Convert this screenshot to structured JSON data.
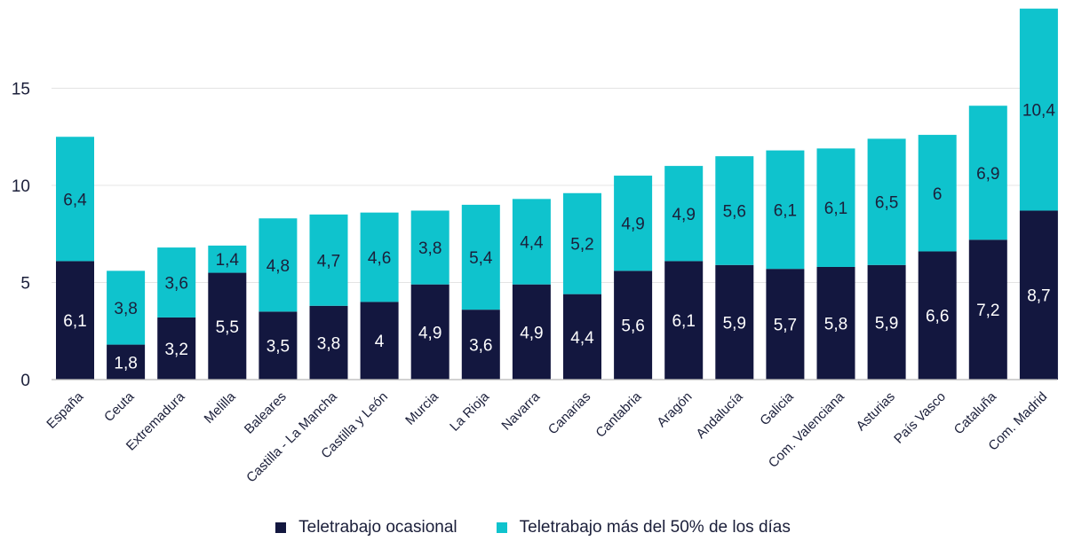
{
  "chart_data": {
    "type": "bar",
    "stacked": true,
    "categories": [
      "España",
      "Ceuta",
      "Extremadura",
      "Melilla",
      "Baleares",
      "Castilla - La Mancha",
      "Castilla y León",
      "Murcia",
      "La Rioja",
      "Navarra",
      "Canarias",
      "Cantabria",
      "Aragón",
      "Andalucía",
      "Galicia",
      "Com. Valenciana",
      "Asturias",
      "País Vasco",
      "Cataluña",
      "Com. Madrid"
    ],
    "series": [
      {
        "name": "Teletrabajo ocasional",
        "color": "#13173f",
        "values": [
          6.1,
          1.8,
          3.2,
          5.5,
          3.5,
          3.8,
          4,
          4.9,
          3.6,
          4.9,
          4.4,
          5.6,
          6.1,
          5.9,
          5.7,
          5.8,
          5.9,
          6.6,
          7.2,
          8.7
        ],
        "labels": [
          "6,1",
          "1,8",
          "3,2",
          "5,5",
          "3,5",
          "3,8",
          "4",
          "4,9",
          "3,6",
          "4,9",
          "4,4",
          "5,6",
          "6,1",
          "5,9",
          "5,7",
          "5,8",
          "5,9",
          "6,6",
          "7,2",
          "8,7"
        ]
      },
      {
        "name": "Teletrabajo más del 50% de los días",
        "color": "#0fc3cd",
        "values": [
          6.4,
          3.8,
          3.6,
          1.4,
          4.8,
          4.7,
          4.6,
          3.8,
          5.4,
          4.4,
          5.2,
          4.9,
          4.9,
          5.6,
          6.1,
          6.1,
          6.5,
          6,
          6.9,
          10.4
        ],
        "labels": [
          "6,4",
          "3,8",
          "3,6",
          "1,4",
          "4,8",
          "4,7",
          "4,6",
          "3,8",
          "5,4",
          "4,4",
          "5,2",
          "4,9",
          "4,9",
          "5,6",
          "6,1",
          "6,1",
          "6,5",
          "6",
          "6,9",
          "10,4"
        ]
      }
    ],
    "yticks": [
      0,
      5,
      10,
      15
    ],
    "ytick_labels": [
      "0",
      "5",
      "10",
      "15"
    ],
    "ylim": [
      0,
      19
    ],
    "grid": true,
    "legend_position": "bottom",
    "title": "",
    "xlabel": "",
    "ylabel": ""
  }
}
